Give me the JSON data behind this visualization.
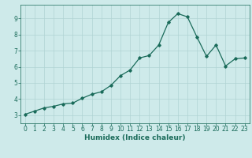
{
  "x": [
    0,
    1,
    2,
    3,
    4,
    5,
    6,
    7,
    8,
    9,
    10,
    11,
    12,
    13,
    14,
    15,
    16,
    17,
    18,
    19,
    20,
    21,
    22,
    23
  ],
  "y": [
    3.05,
    3.25,
    3.45,
    3.55,
    3.7,
    3.75,
    4.05,
    4.3,
    4.45,
    4.85,
    5.45,
    5.8,
    6.55,
    6.7,
    7.35,
    8.75,
    9.3,
    9.1,
    7.85,
    6.65,
    7.35,
    6.05,
    6.5,
    6.55
  ],
  "xlabel": "Humidex (Indice chaleur)",
  "xlim": [
    -0.5,
    23.5
  ],
  "ylim": [
    2.5,
    9.85
  ],
  "yticks": [
    3,
    4,
    5,
    6,
    7,
    8,
    9
  ],
  "xticks": [
    0,
    1,
    2,
    3,
    4,
    5,
    6,
    7,
    8,
    9,
    10,
    11,
    12,
    13,
    14,
    15,
    16,
    17,
    18,
    19,
    20,
    21,
    22,
    23
  ],
  "line_color": "#1a6b5a",
  "marker": "D",
  "marker_size": 1.8,
  "bg_color": "#ceeaea",
  "grid_color": "#b0d4d4",
  "tick_label_color": "#1a6b5a",
  "xlabel_color": "#1a6b5a",
  "tick_fontsize": 5.5,
  "xlabel_fontsize": 6.5
}
